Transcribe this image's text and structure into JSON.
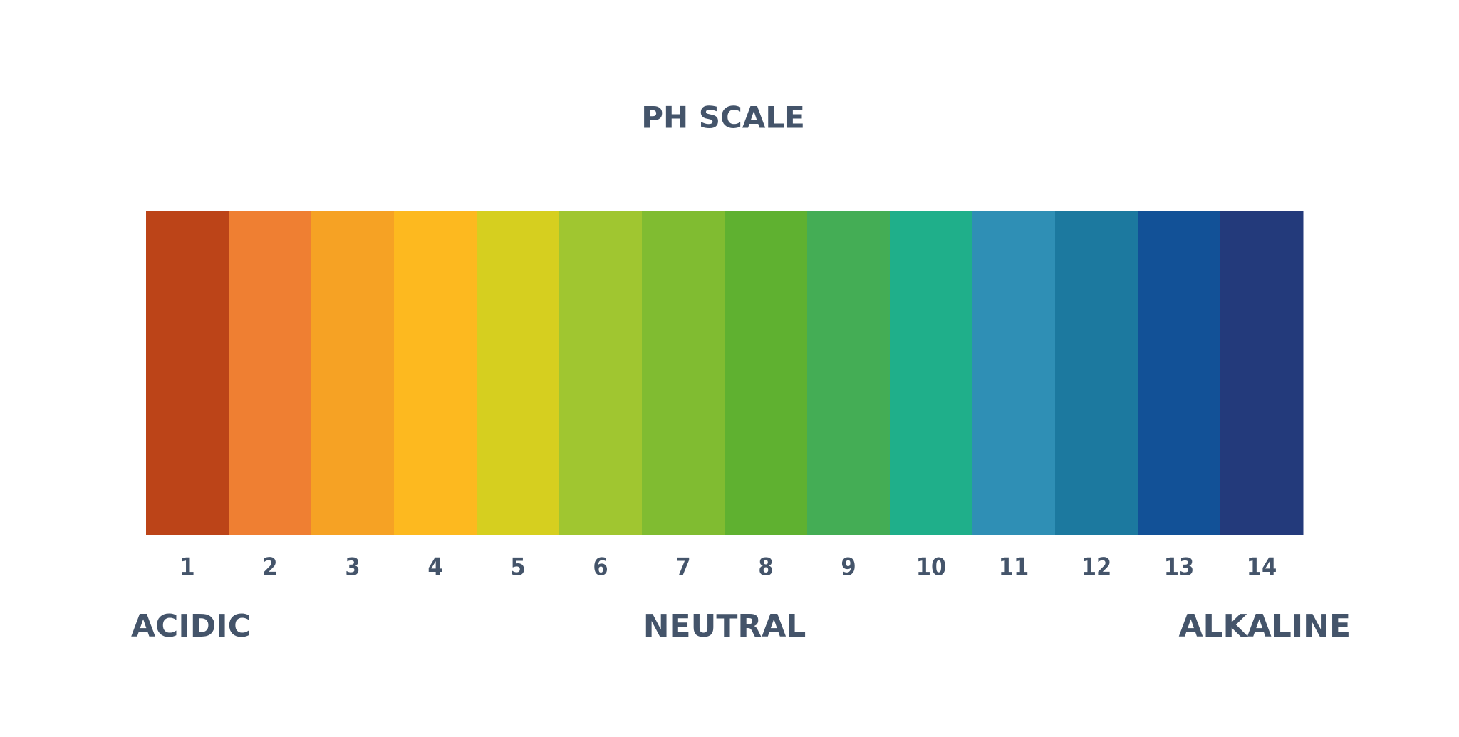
{
  "title": "PH SCALE",
  "segments": [
    {
      "label": "1",
      "color": "#bc4418"
    },
    {
      "label": "2",
      "color": "#ef7f32"
    },
    {
      "label": "3",
      "color": "#f6a224"
    },
    {
      "label": "4",
      "color": "#fdb91f"
    },
    {
      "label": "5",
      "color": "#d6cf1f"
    },
    {
      "label": "6",
      "color": "#a0c630"
    },
    {
      "label": "7",
      "color": "#80bc31"
    },
    {
      "label": "8",
      "color": "#5fb130"
    },
    {
      "label": "9",
      "color": "#44ad55"
    },
    {
      "label": "10",
      "color": "#1faf8a"
    },
    {
      "label": "11",
      "color": "#2f8fb5"
    },
    {
      "label": "12",
      "color": "#1c799f"
    },
    {
      "label": "13",
      "color": "#125197"
    },
    {
      "label": "14",
      "color": "#233a7b"
    }
  ],
  "labels": {
    "left": "ACIDIC",
    "center": "NEUTRAL",
    "right": "ALKALINE"
  }
}
